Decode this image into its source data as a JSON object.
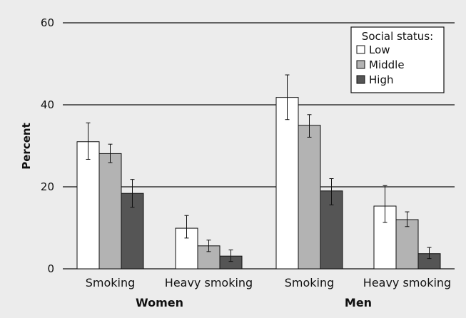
{
  "chart_data": {
    "type": "bar",
    "ylabel": "Percent",
    "ylim": [
      0,
      60
    ],
    "yticks": [
      0,
      20,
      40,
      60
    ],
    "grid": "horizontal",
    "legend": {
      "title": "Social status:",
      "placement": "top-right",
      "entries": [
        {
          "name": "Low",
          "color": "#ffffff"
        },
        {
          "name": "Middle",
          "color": "#b3b3b3"
        },
        {
          "name": "High",
          "color": "#555555"
        }
      ]
    },
    "groups": [
      {
        "label": "Women",
        "categories": [
          "Smoking",
          "Heavy smoking"
        ]
      },
      {
        "label": "Men",
        "categories": [
          "Smoking",
          "Heavy smoking"
        ]
      }
    ],
    "categories": [
      "Smoking",
      "Heavy smoking",
      "Smoking",
      "Heavy smoking"
    ],
    "series": [
      {
        "name": "Low",
        "color": "#ffffff",
        "values": [
          31.0,
          9.9,
          41.8,
          15.3
        ],
        "ci_low": [
          26.7,
          7.5,
          36.4,
          11.3
        ],
        "ci_high": [
          35.6,
          13.0,
          47.3,
          20.3
        ]
      },
      {
        "name": "Middle",
        "color": "#b3b3b3",
        "values": [
          28.1,
          5.6,
          35.0,
          12.0
        ],
        "ci_low": [
          25.9,
          4.2,
          32.1,
          10.3
        ],
        "ci_high": [
          30.4,
          7.0,
          37.6,
          13.9
        ]
      },
      {
        "name": "High",
        "color": "#555555",
        "values": [
          18.4,
          3.1,
          19.0,
          3.7
        ],
        "ci_low": [
          15.0,
          1.8,
          15.6,
          2.5
        ],
        "ci_high": [
          21.8,
          4.6,
          22.0,
          5.2
        ]
      }
    ]
  }
}
